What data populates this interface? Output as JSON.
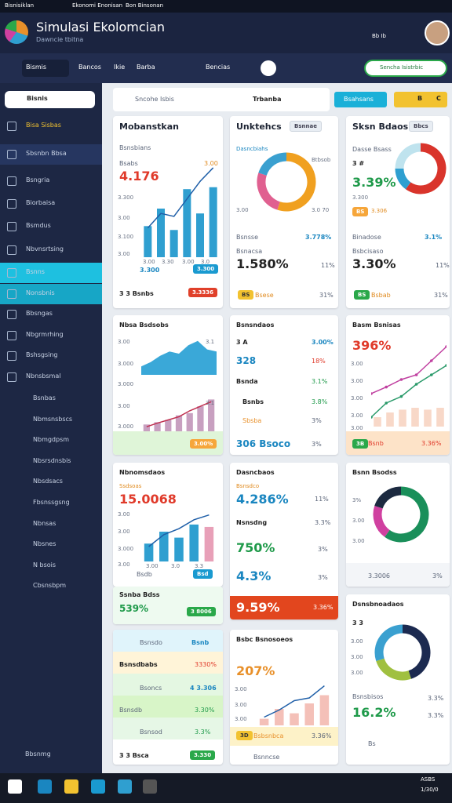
{
  "system_bar": {
    "left": [
      "Bisnisiklan",
      "Ekonomi Enonisan",
      "Bon Binsonan"
    ]
  },
  "header": {
    "title": "Simulasi Ekolomcian",
    "subtitle": "Dawncie tbitna",
    "icon_label": "Bb Ib"
  },
  "nav": {
    "items": [
      "Bismis",
      "Bancos",
      "Ikie",
      "Barba"
    ],
    "search": "Bencias",
    "button": "Sencha Isistrbic"
  },
  "sidebar": {
    "search": "Bisnis",
    "items": [
      "Bisa Sisbas",
      "Sbsnbn Bbsa",
      "Bsngria",
      "Biorbaisa",
      "Bsmdus",
      "Nbvnsrtsing",
      "Bsnns",
      "Nonsbnis",
      "Bbsngas",
      "Nbgrmrhing",
      "Bshsgsing",
      "Nbnsbsmal"
    ],
    "sub_items": [
      "Bsnbas",
      "Nbmsnsbscs",
      "Nbmgdpsm",
      "Nbsrsdnsbis",
      "Nbsdsacs",
      "Fbsnssgsng",
      "Nbnsas",
      "Nbsnes",
      "N bsois",
      "Cbsnsbpm"
    ],
    "active": 6,
    "hover": 7,
    "footer": "Bbsnmg"
  },
  "toolbar": {
    "search": "Sncohe Isbis",
    "filter": "Trbanba",
    "button": "Bsahsans",
    "tags": [
      "B",
      "C"
    ]
  },
  "cards": [
    {
      "title": "Mobanstkan",
      "label": "Bsnsbians",
      "sub": "Bsabs",
      "sub_value": "3.00",
      "value": "4.176",
      "axis": [
        "3.300",
        "3.00",
        "3.100",
        "3.00"
      ],
      "x_axis": [
        "3.00",
        "3.30",
        "3.00",
        "3.0"
      ],
      "legend": "3.300",
      "legend_button": "3.300",
      "footer": "3 3  Bsnbs",
      "footer_button": "3.3336",
      "chart": {
        "type": "bar",
        "bars": [
          32,
          50,
          28,
          70,
          45,
          72
        ],
        "line": [
          30,
          45,
          42,
          60,
          78,
          92
        ],
        "ylim": [
          0,
          100
        ],
        "color": "#2f9fd0",
        "line_color": "#1f5fa8"
      }
    },
    {
      "title": "Unktehcs",
      "button": "Bsnnae",
      "label": "Dasncbiahs",
      "ring_label": "Btbsob",
      "axis_left": "3.00",
      "axis_right": "3.0 70",
      "row_label": "Bsnsse",
      "row_value": "3.778%",
      "sub": "Bsnacsa",
      "value": "1.580%",
      "change": "11%",
      "chip": "BS",
      "chip_label": "Bsese",
      "footer_value": "31%",
      "chart": {
        "type": "donut",
        "values": [
          55,
          25,
          20
        ],
        "colors": [
          "#f0a020",
          "#e06090",
          "#3aa0d0"
        ]
      }
    },
    {
      "title": "Sksn Bdaos",
      "button": "Bbcs",
      "label": "Dasse Bsass",
      "sub": "3 #",
      "value": "3.39%",
      "axis": "3.300",
      "chips": [
        "BS",
        "3.306"
      ],
      "row_label": "Binadose",
      "row_value": "3.1%",
      "sub2": "Bsbcisaso",
      "value2": "3.30%",
      "change": "11%",
      "chip": "BS",
      "chip_label": "Bsbab",
      "footer_value": "31%",
      "chart": {
        "type": "donut",
        "values": [
          60,
          15,
          25
        ],
        "colors": [
          "#d9342b",
          "#2f9fd0",
          "#bfe3ee"
        ]
      }
    },
    {
      "title": "Nbsa Bsdsobs",
      "axis": [
        "3.00",
        "3.000",
        "3.000",
        "3.00",
        "3.000"
      ],
      "axis_right": [
        "3.1",
        "3.1"
      ],
      "footer_value": "3.00%",
      "charts": [
        {
          "type": "area",
          "values": [
            20,
            30,
            45,
            55,
            50,
            70,
            80,
            60,
            55
          ],
          "ylim": [
            0,
            100
          ],
          "color": "#3aa8d8"
        },
        {
          "type": "bar",
          "bars": [
            15,
            20,
            25,
            35,
            40,
            55,
            70
          ],
          "line": [
            10,
            18,
            25,
            32,
            45,
            55,
            65
          ],
          "ylim": [
            0,
            100
          ],
          "color": "#c8a0c0",
          "line_color": "#c03050"
        }
      ]
    },
    {
      "title": "Bsnsndaos",
      "rows": [
        [
          "3 A",
          "3.00%"
        ],
        [
          "328",
          "18%"
        ],
        [
          "Bsnda",
          "3.1%"
        ],
        [
          "Bsnbs",
          "3.8%"
        ],
        [
          "Sbsba",
          "3%"
        ],
        [
          "306 Bsoco",
          "3%"
        ]
      ]
    },
    {
      "title": "Basm Bsnisas",
      "value": "396%",
      "axis": [
        "3.00",
        "3.00",
        "3.00",
        "3.00",
        "3.00"
      ],
      "footer_chip": "3B",
      "footer_label": "Bsnb",
      "footer_value": "3.36%",
      "chart": {
        "type": "line",
        "series": [
          {
            "values": [
              35,
              42,
              50,
              55,
              70,
              85
            ],
            "color": "#c040a0"
          },
          {
            "values": [
              10,
              25,
              32,
              45,
              55,
              65
            ],
            "color": "#2a9a6a"
          }
        ],
        "bars": [
          10,
          15,
          18,
          20,
          18,
          20
        ],
        "bar_color": "#f8d8c8",
        "ylim": [
          0,
          100
        ]
      }
    },
    {
      "title": "Nbnomsdaos",
      "sub": "Ssdsoas",
      "value": "15.0068",
      "axis": [
        "3.00",
        "3.00",
        "3.000",
        "3.00"
      ],
      "x_axis": [
        "3.00",
        "3.0",
        "3.3"
      ],
      "footer_label": "Bsdb",
      "footer_value": "Bsd",
      "chart": {
        "type": "bar",
        "bars": [
          30,
          50,
          40,
          62,
          58
        ],
        "line": [
          25,
          45,
          55,
          70,
          78
        ],
        "ylim": [
          0,
          100
        ],
        "colors": [
          "#2f9fd0",
          "#2f9fd0",
          "#2f9fd0",
          "#2f9fd0",
          "#e8a0b8"
        ],
        "line_color": "#1f5fa8"
      }
    },
    {
      "title": "Ssnba Bdss",
      "value": "539%",
      "button": "3 8006"
    },
    {
      "rows": [
        {
          "label": "Bsnsdo",
          "value": "Bsnb"
        },
        {
          "label": "Bsnsdbabs",
          "value": "3330%"
        },
        {
          "label": "Bsoncs",
          "value": "4 3.306"
        },
        {
          "label": "Bsnsdb",
          "value": "3.30%"
        },
        {
          "label": "Bsnsod",
          "value": "3.3%"
        }
      ],
      "footer": "3 3  Bsca",
      "footer_button": "3.330"
    },
    {
      "title": "Dasncbaos",
      "sub": "Bsnsdco",
      "value": "4.286%",
      "change": "11%",
      "sub2": "Nsnsdng",
      "change2": "3.3%",
      "value2": "750%",
      "change3": "3%",
      "value3": "4.3%",
      "change4": "3%",
      "banner": "9.59%",
      "banner_value": "3.36%"
    },
    {
      "title": "Bsbc Bsnosoeos",
      "value": "207%",
      "axis": [
        "3.00",
        "3.00",
        "3.00"
      ],
      "footer_chip": "3D",
      "footer_label": "Bsbsnbca",
      "footer_value": "3.36%",
      "footer2": "Bsnncse",
      "chart": {
        "type": "bar",
        "bars": [
          12,
          30,
          22,
          40,
          55
        ],
        "line": [
          15,
          28,
          45,
          50,
          72
        ],
        "ylim": [
          0,
          100
        ],
        "color": "#f4c0b8",
        "line_color": "#1f5fa8"
      }
    },
    {
      "title": "Bsnn Bsodss",
      "axis": [
        "3%",
        "3.00",
        "3.00"
      ],
      "footer_label": "3.3006",
      "footer_value": "3%",
      "chart": {
        "type": "donut",
        "values": [
          60,
          20,
          20
        ],
        "colors": [
          "#1a8f5a",
          "#d040a0",
          "#1c2a40"
        ]
      }
    },
    {
      "title": "Dsnsbnoadaos",
      "sub": "3 3",
      "axis": [
        "3.00",
        "3.00",
        "3.00"
      ],
      "sub2": "Bsnsbisos",
      "value": "16.2%",
      "changes": [
        "3.3%",
        "3.3%"
      ],
      "footer": "Bs",
      "chart": {
        "type": "donut",
        "values": [
          45,
          25,
          30
        ],
        "colors": [
          "#1c2a50",
          "#a0c040",
          "#3aa0d0"
        ]
      }
    }
  ],
  "taskbar": {
    "time": "ASBS",
    "date": "1/30/0"
  }
}
